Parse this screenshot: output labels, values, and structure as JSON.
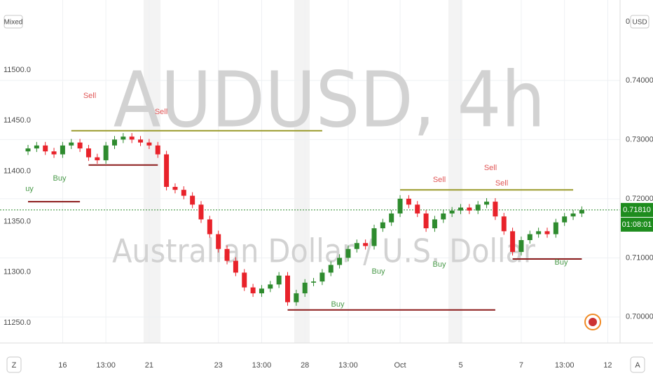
{
  "chart_data": {
    "type": "candlestick",
    "watermark_title": "AUDUSD, 4h",
    "watermark_subtitle": "Australian Dollar / U.S. Dollar",
    "scale_mode": "Mixed",
    "currency": "USD",
    "currency_prefix": "0",
    "left_button": "Z",
    "right_button": "A",
    "categories": [
      null,
      null,
      null,
      null,
      "16",
      null,
      null,
      null,
      null,
      "13:00",
      null,
      null,
      null,
      null,
      "21",
      null,
      null,
      null,
      null,
      null,
      null,
      null,
      "23",
      null,
      null,
      null,
      null,
      "13:00",
      null,
      null,
      null,
      null,
      "28",
      null,
      null,
      null,
      null,
      "13:00",
      null,
      null,
      null,
      null,
      null,
      "Oct",
      null,
      null,
      null,
      null,
      null,
      null,
      "5",
      null,
      null,
      null,
      null,
      null,
      null,
      "7",
      null,
      null,
      null,
      null,
      "13:00",
      null,
      null,
      null,
      null,
      "12"
    ],
    "ylim": [
      11229.9,
      11569.2
    ],
    "yticks": [
      {
        "value": 11250,
        "label": "11250.0"
      },
      {
        "value": 11300,
        "label": "11300.0"
      },
      {
        "value": 11350,
        "label": "11350.0"
      },
      {
        "value": 11400,
        "label": "11400.0"
      },
      {
        "value": 11450,
        "label": "11450.0"
      },
      {
        "value": 11500,
        "label": "11500.0"
      }
    ],
    "y2lim": [
      0.6956,
      0.7536
    ],
    "y2ticks": [
      {
        "value": 0.7,
        "label": "0.70000"
      },
      {
        "value": 0.71,
        "label": "0.71000"
      },
      {
        "value": 0.72,
        "label": "0.72000"
      },
      {
        "value": 0.73,
        "label": "0.73000"
      },
      {
        "value": 0.74,
        "label": "0.74000"
      }
    ],
    "grid": true,
    "series": [
      {
        "axis": "y2",
        "up_color": "#2e8b2e",
        "down_color": "#e8222a",
        "open": [
          0.728,
          0.7285,
          0.729,
          0.728,
          0.7275,
          0.729,
          0.7295,
          0.7285,
          0.727,
          0.7265,
          0.729,
          0.73,
          0.7305,
          0.73,
          0.7295,
          0.729,
          0.7275,
          0.722,
          0.7215,
          0.7205,
          0.719,
          0.7165,
          0.714,
          0.7115,
          0.7095,
          0.7075,
          0.705,
          0.704,
          0.7048,
          0.7055,
          0.707,
          0.7025,
          0.704,
          0.7058,
          0.706,
          0.7075,
          0.7088,
          0.71,
          0.7115,
          0.7125,
          0.712,
          0.715,
          0.716,
          0.7175,
          0.72,
          0.719,
          0.7175,
          0.715,
          0.7165,
          0.7175,
          0.718,
          0.7185,
          0.718,
          0.719,
          0.7195,
          0.717,
          0.7145,
          0.711,
          0.713,
          0.714,
          0.7145,
          0.714,
          0.716,
          0.717,
          0.7175,
          null,
          null,
          null
        ],
        "high": [
          0.7291,
          0.7296,
          0.7296,
          0.7286,
          0.7296,
          0.7301,
          0.7301,
          0.7291,
          0.7276,
          0.7296,
          0.7306,
          0.7311,
          0.7311,
          0.7306,
          0.7301,
          0.7296,
          0.7281,
          0.7226,
          0.7221,
          0.7211,
          0.7196,
          0.7171,
          0.7146,
          0.7121,
          0.7101,
          0.7081,
          0.7056,
          0.7054,
          0.7061,
          0.7076,
          0.7076,
          0.7046,
          0.7064,
          0.7066,
          0.7081,
          0.7094,
          0.7106,
          0.7121,
          0.7131,
          0.7131,
          0.7156,
          0.7166,
          0.7181,
          0.7206,
          0.7206,
          0.7196,
          0.7181,
          0.7171,
          0.7181,
          0.7186,
          0.7191,
          0.7191,
          0.7196,
          0.7201,
          0.7201,
          0.7176,
          0.7151,
          0.7136,
          0.7146,
          0.7151,
          0.7151,
          0.7166,
          0.7176,
          0.7181,
          0.7187,
          null,
          null,
          null
        ],
        "low": [
          0.7274,
          0.7279,
          0.7274,
          0.7269,
          0.7269,
          0.7284,
          0.7279,
          0.7264,
          0.7259,
          0.7259,
          0.7284,
          0.7294,
          0.7294,
          0.7289,
          0.7284,
          0.7269,
          0.7214,
          0.7209,
          0.7199,
          0.7184,
          0.7159,
          0.7134,
          0.7109,
          0.7089,
          0.7069,
          0.7044,
          0.7034,
          0.7034,
          0.7042,
          0.7049,
          0.7019,
          0.7019,
          0.7034,
          0.7052,
          0.7054,
          0.7069,
          0.7082,
          0.7094,
          0.7109,
          0.7114,
          0.7114,
          0.7144,
          0.7154,
          0.7169,
          0.7184,
          0.7169,
          0.7144,
          0.7144,
          0.7159,
          0.7169,
          0.7174,
          0.7174,
          0.7174,
          0.7184,
          0.7164,
          0.7139,
          0.7104,
          0.7104,
          0.7124,
          0.7134,
          0.7134,
          0.7134,
          0.7154,
          0.7164,
          0.7169,
          null,
          null,
          null
        ],
        "close": [
          0.7285,
          0.729,
          0.728,
          0.7275,
          0.729,
          0.7295,
          0.7285,
          0.727,
          0.7265,
          0.729,
          0.73,
          0.7305,
          0.73,
          0.7295,
          0.729,
          0.7275,
          0.722,
          0.7215,
          0.7205,
          0.719,
          0.7165,
          0.714,
          0.7115,
          0.7095,
          0.7075,
          0.705,
          0.704,
          0.7048,
          0.7055,
          0.707,
          0.7025,
          0.704,
          0.7058,
          0.706,
          0.7075,
          0.7088,
          0.71,
          0.7115,
          0.7125,
          0.712,
          0.715,
          0.716,
          0.7175,
          0.72,
          0.719,
          0.7175,
          0.715,
          0.7165,
          0.7175,
          0.718,
          0.7185,
          0.718,
          0.719,
          0.7195,
          0.717,
          0.7145,
          0.711,
          0.713,
          0.714,
          0.7145,
          0.714,
          0.716,
          0.717,
          0.7175,
          0.7181,
          null,
          null,
          null
        ]
      }
    ],
    "levels": [
      {
        "value": 0.7315,
        "from": 5,
        "to": 34,
        "color": "#9a9a2a"
      },
      {
        "value": 0.7215,
        "from": 43,
        "to": 63,
        "color": "#9a9a2a"
      },
      {
        "value": 0.7257,
        "from": 7,
        "to": 15,
        "color": "#8b1a1a"
      },
      {
        "value": 0.7195,
        "from": 0,
        "to": 6,
        "color": "#8b1a1a"
      },
      {
        "value": 0.7012,
        "from": 30,
        "to": 54,
        "color": "#8b1a1a"
      },
      {
        "value": 0.7098,
        "from": 56,
        "to": 64,
        "color": "#8b1a1a"
      }
    ],
    "last_price": {
      "value": 0.7181,
      "label": "0.71810"
    },
    "countdown": "01:08:01",
    "annotations": [
      "Sell",
      "Sell",
      "Buy",
      "uy",
      "Buy",
      "Buy",
      "Buy",
      "Sell",
      "Sell",
      "Sell",
      "Buy"
    ]
  }
}
